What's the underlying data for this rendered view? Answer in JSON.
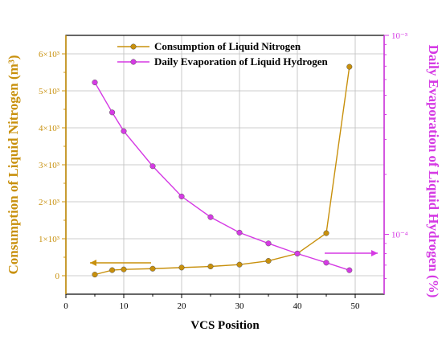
{
  "chart_data": {
    "type": "line",
    "xlabel": "VCS Position",
    "ylabel_left": "Consumption of Liquid Nitrogen (m³)",
    "ylabel_right": "Daily Evaporation of Liquid Hydrogen (%)",
    "xlim": [
      0,
      55
    ],
    "x_ticks": [
      0,
      10,
      20,
      30,
      40,
      50
    ],
    "y_left_lim": [
      -500,
      6500
    ],
    "y_left_ticks": [
      {
        "value": 0,
        "label": "0"
      },
      {
        "value": 1000,
        "label": "1×10³"
      },
      {
        "value": 2000,
        "label": "2×10³"
      },
      {
        "value": 3000,
        "label": "3×10³"
      },
      {
        "value": 4000,
        "label": "4×10³"
      },
      {
        "value": 5000,
        "label": "5×10³"
      },
      {
        "value": 6000,
        "label": "6×10³"
      }
    ],
    "y_right_scale": "log",
    "y_right_lim": [
      5e-05,
      0.001
    ],
    "y_right_ticks": [
      {
        "value": 0.0001,
        "label": "10⁻⁴"
      },
      {
        "value": 0.001,
        "label": "10⁻³"
      }
    ],
    "grid": true,
    "legend_position": "top",
    "series": [
      {
        "name": "Consumption of Liquid Nitrogen",
        "axis": "left",
        "color": "#c8900c",
        "x": [
          5,
          8,
          10,
          15,
          20,
          25,
          30,
          35,
          40,
          45,
          49
        ],
        "values": [
          30,
          150,
          170,
          190,
          220,
          250,
          300,
          400,
          600,
          1150,
          5650
        ]
      },
      {
        "name": "Daily Evaporation of Liquid Hydrogen",
        "axis": "right",
        "color": "#d53ae4",
        "x": [
          5,
          8,
          10,
          15,
          20,
          25,
          30,
          35,
          40,
          45,
          49
        ],
        "values": [
          0.00058,
          0.00041,
          0.00033,
          0.00022,
          0.000155,
          0.000122,
          0.000102,
          9e-05,
          8e-05,
          7.2e-05,
          6.6e-05
        ]
      }
    ],
    "arrows": [
      {
        "series": 0,
        "direction": "left"
      },
      {
        "series": 1,
        "direction": "right"
      }
    ]
  }
}
